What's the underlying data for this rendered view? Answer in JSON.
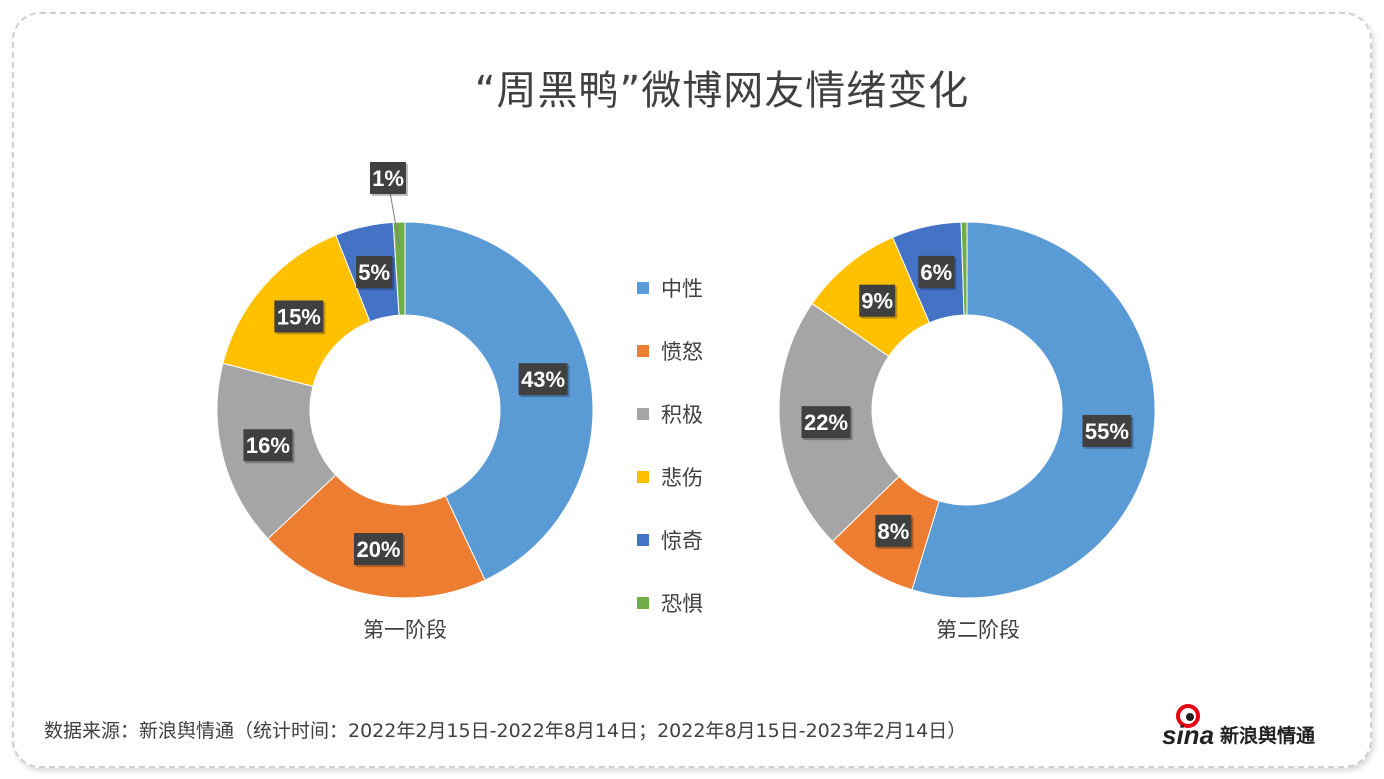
{
  "title": "“周黑鸭”微博网友情绪变化",
  "source": "数据来源：新浪舆情通（统计时间：2022年2月15日-2022年8月14日；2022年8月15日-2023年2月14日）",
  "logo_text": "sina新浪舆情通",
  "chart_data": [
    {
      "type": "pie",
      "donut": true,
      "label": "第一阶段",
      "categories": [
        "中性",
        "愤怒",
        "积极",
        "悲伤",
        "惊奇",
        "恐惧"
      ],
      "values": [
        43,
        20,
        16,
        15,
        5,
        1
      ],
      "data_labels": [
        "43%",
        "20%",
        "16%",
        "15%",
        "5%",
        "1%"
      ]
    },
    {
      "type": "pie",
      "donut": true,
      "label": "第二阶段",
      "categories": [
        "中性",
        "愤怒",
        "积极",
        "悲伤",
        "惊奇",
        "恐惧"
      ],
      "values": [
        55,
        8,
        22,
        9,
        6,
        0.5
      ],
      "data_labels": [
        "55%",
        "8%",
        "22%",
        "9%",
        "6%",
        ""
      ]
    }
  ],
  "legend": [
    {
      "name": "中性",
      "color": "#5B9BD5"
    },
    {
      "name": "愤怒",
      "color": "#ED7D31"
    },
    {
      "name": "积极",
      "color": "#A5A5A5"
    },
    {
      "name": "悲伤",
      "color": "#FFC000"
    },
    {
      "name": "惊奇",
      "color": "#4472C4"
    },
    {
      "name": "恐惧",
      "color": "#70AD47"
    }
  ]
}
